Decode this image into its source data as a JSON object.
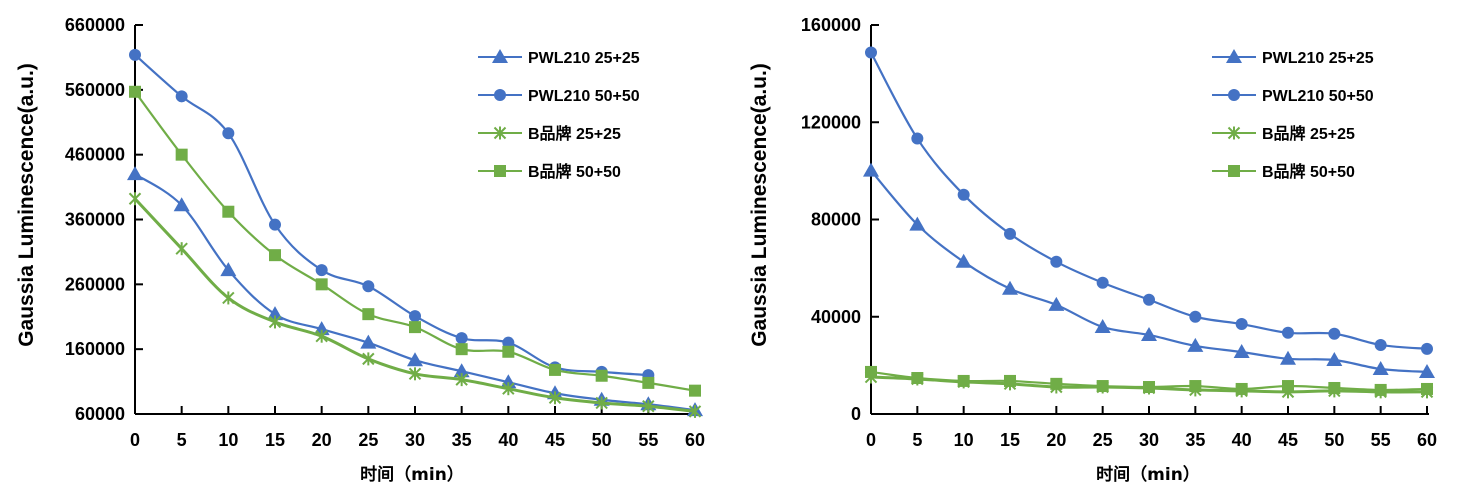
{
  "colors": {
    "blue": "#4472C4",
    "green": "#70AD47",
    "axis": "#000000"
  },
  "chart_data": [
    {
      "type": "line",
      "title": "",
      "xlabel": "时间（min）",
      "ylabel": "Gaussia Luminescence(a.u.)",
      "x": [
        0,
        5,
        10,
        15,
        20,
        25,
        30,
        35,
        40,
        45,
        50,
        55,
        60
      ],
      "xticks": [
        "0",
        "5",
        "10",
        "15",
        "20",
        "25",
        "30",
        "35",
        "40",
        "45",
        "50",
        "55",
        "60"
      ],
      "ylim": [
        60000,
        660000
      ],
      "yticks": [
        "60000",
        "160000",
        "260000",
        "360000",
        "460000",
        "560000",
        "660000"
      ],
      "ytick_values": [
        60000,
        160000,
        260000,
        360000,
        460000,
        560000,
        660000
      ],
      "grid": false,
      "legend_position": "top-right",
      "series": [
        {
          "name": "PWL210 25+25",
          "color": "blue",
          "marker": "triangle",
          "values": [
            430000,
            382000,
            282000,
            214000,
            191000,
            170000,
            143000,
            126000,
            109000,
            92000,
            82000,
            75000,
            66000
          ]
        },
        {
          "name": "PWL210 50+50",
          "color": "blue",
          "marker": "circle",
          "values": [
            614000,
            550000,
            493000,
            352000,
            282000,
            257000,
            211000,
            177000,
            170000,
            132000,
            125000,
            120000,
            null
          ]
        },
        {
          "name": "B品牌 25+25",
          "color": "green",
          "marker": "asterisk",
          "values": [
            392000,
            315000,
            239000,
            202000,
            180000,
            145000,
            122000,
            113000,
            99000,
            85000,
            77000,
            72000,
            64000
          ]
        },
        {
          "name": "B品牌 50+50",
          "color": "green",
          "marker": "square",
          "values": [
            557000,
            460000,
            372000,
            305000,
            260000,
            214000,
            194000,
            160000,
            156000,
            128000,
            119000,
            108000,
            96000
          ]
        }
      ]
    },
    {
      "type": "line",
      "title": "",
      "xlabel": "时间（min）",
      "ylabel": "Gaussia Luminescence(a.u.)",
      "x": [
        0,
        5,
        10,
        15,
        20,
        25,
        30,
        35,
        40,
        45,
        50,
        55,
        60
      ],
      "xticks": [
        "0",
        "5",
        "10",
        "15",
        "20",
        "25",
        "30",
        "35",
        "40",
        "45",
        "50",
        "55",
        "60"
      ],
      "ylim": [
        0,
        160000
      ],
      "yticks": [
        "0",
        "40000",
        "80000",
        "120000",
        "160000"
      ],
      "ytick_values": [
        0,
        40000,
        80000,
        120000,
        160000
      ],
      "grid": false,
      "legend_position": "top-right",
      "series": [
        {
          "name": "PWL210 25+25",
          "color": "blue",
          "marker": "triangle",
          "values": [
            100100,
            77900,
            62600,
            51500,
            44900,
            35800,
            32500,
            28000,
            25500,
            22700,
            22200,
            18500,
            17300
          ]
        },
        {
          "name": "PWL210 50+50",
          "color": "blue",
          "marker": "circle",
          "values": [
            148700,
            113300,
            90200,
            74100,
            62600,
            54000,
            47000,
            40000,
            37000,
            33400,
            33000,
            28400,
            26800
          ]
        },
        {
          "name": "B品牌 25+25",
          "color": "green",
          "marker": "asterisk",
          "values": [
            15200,
            14400,
            13200,
            12400,
            11100,
            11100,
            10700,
            9900,
            9500,
            9100,
            9500,
            9100,
            9100
          ]
        },
        {
          "name": "B品牌 50+50",
          "color": "green",
          "marker": "square",
          "values": [
            17300,
            14800,
            13600,
            13600,
            12400,
            11500,
            11100,
            11500,
            10300,
            11500,
            10700,
            9900,
            10300
          ]
        }
      ]
    }
  ]
}
